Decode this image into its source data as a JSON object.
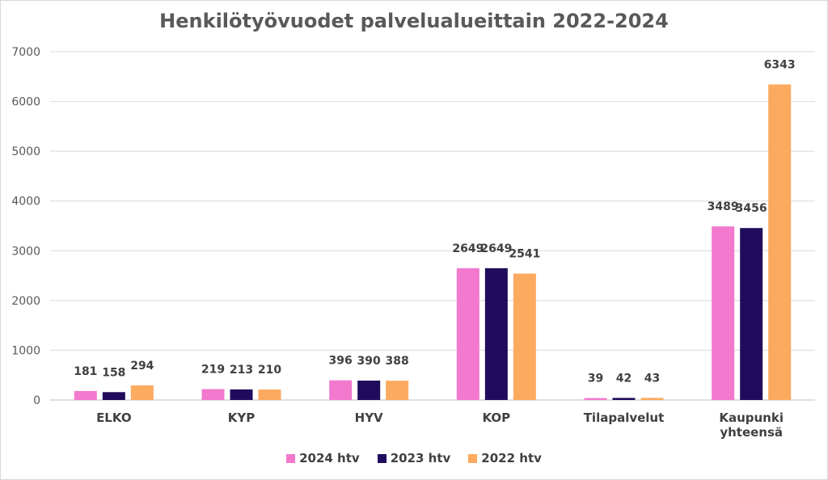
{
  "chart_data": {
    "type": "bar",
    "title": "Henkilötyövuodet palvelualueittain 2022-2024",
    "categories": [
      [
        "ELKO"
      ],
      [
        "KYP"
      ],
      [
        "HYV"
      ],
      [
        "KOP"
      ],
      [
        "Tilapalvelut"
      ],
      [
        "Kaupunki",
        "yhteensä"
      ]
    ],
    "series": [
      {
        "name": "2024 htv",
        "color": "#f279ce",
        "values": [
          181,
          219,
          396,
          2649,
          39,
          3489
        ]
      },
      {
        "name": "2023 htv",
        "color": "#200c5c",
        "values": [
          158,
          213,
          390,
          2649,
          42,
          3456
        ]
      },
      {
        "name": "2022 htv",
        "color": "#fbaa60",
        "values": [
          294,
          210,
          388,
          2541,
          43,
          6343
        ]
      }
    ],
    "ylim": [
      0,
      7000
    ],
    "yticks": [
      0,
      1000,
      2000,
      3000,
      4000,
      5000,
      6000,
      7000
    ],
    "grid": true,
    "legend": "bottom"
  }
}
